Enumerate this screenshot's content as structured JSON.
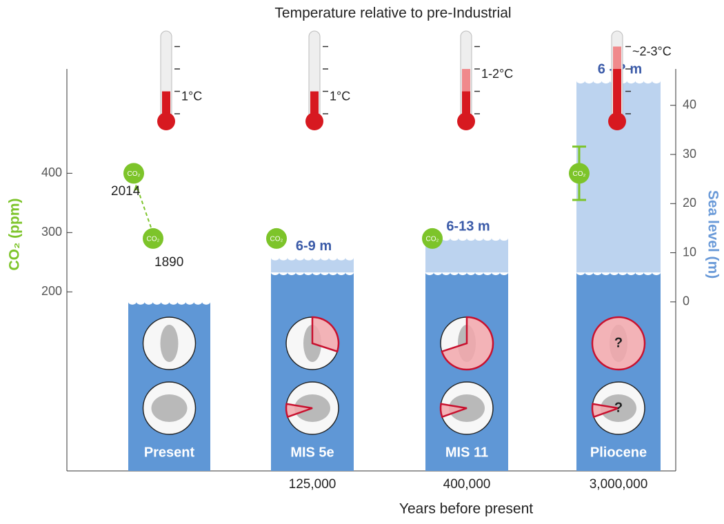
{
  "chart_data": {
    "type": "infographic",
    "title": "Temperature relative to pre-Industrial",
    "x_label": "Years before present",
    "y_label": "CO₂ (ppm)",
    "y2_label": "Sea level (m)",
    "categories": [
      "Present",
      "MIS 5e",
      "MIS 11",
      "Pliocene"
    ],
    "x_labels": [
      null,
      "125,000",
      "400,000",
      "3,000,000"
    ],
    "ylim": [
      -102,
      576
    ],
    "yticks": [
      200,
      300,
      400
    ],
    "y2lim": [
      -34.4,
      47.4
    ],
    "y2ticks": [
      0,
      10,
      20,
      30,
      40
    ],
    "sea_level_low": [
      0,
      6,
      6,
      6
    ],
    "sea_level_high": [
      0,
      9,
      13,
      45
    ],
    "sea_level_labels": [
      null,
      "6-9 m",
      "6-13 m",
      "6 - ? m"
    ],
    "co2_marker": "CO₂",
    "co2_present": {
      "labels": [
        "1890",
        "2014"
      ],
      "values": [
        290,
        400
      ]
    },
    "co2": [
      null,
      290,
      290,
      400
    ],
    "co2_error": [
      null,
      null,
      null,
      45
    ],
    "temperature_ticks": [
      0,
      1,
      2,
      3
    ],
    "temperature_low": [
      1,
      1,
      1,
      2
    ],
    "temperature_high": [
      1,
      1,
      2,
      3
    ],
    "temperature_labels": [
      "1°C",
      "1°C",
      "1-2°C",
      "~2-3°C"
    ],
    "greenland_loss": [
      0,
      30,
      70,
      100
    ],
    "antarctica_loss": [
      0,
      8,
      8,
      8
    ],
    "unknown_marker": "?",
    "colors": {
      "sea_dark": "#5f97d6",
      "sea_light": "#bcd3ef",
      "co2": "#7dc42a",
      "sea_text": "#3a5aa8",
      "y2_text": "#6a9ad8",
      "loss": "#f2a7ab",
      "loss_edge": "#c8102e",
      "thermo": "#d71920",
      "thermo_light": "#f08a8c"
    }
  }
}
